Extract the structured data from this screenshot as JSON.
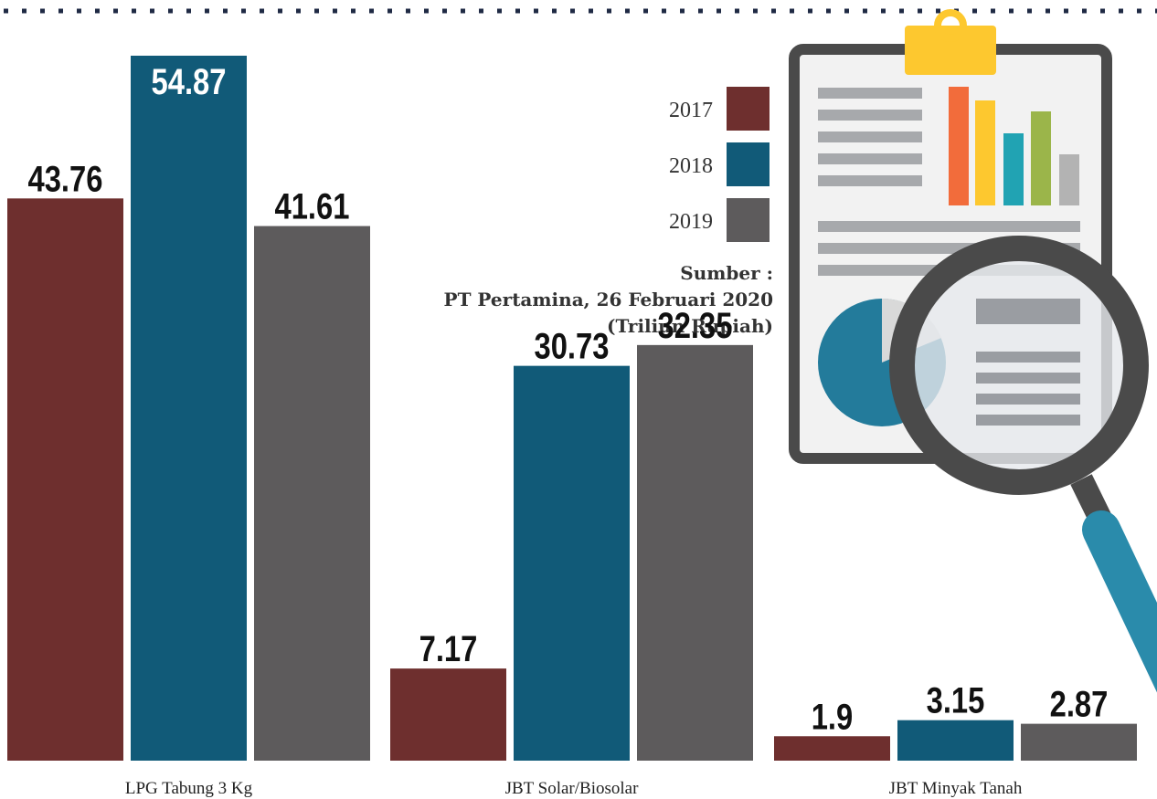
{
  "chart_data": {
    "type": "bar",
    "categories": [
      "LPG Tabung 3 Kg",
      "JBT Solar/Biosolar",
      "JBT Minyak Tanah"
    ],
    "series": [
      {
        "name": "2017",
        "color": "#6e2f2e",
        "values": [
          43.76,
          7.17,
          1.9
        ]
      },
      {
        "name": "2018",
        "color": "#115a78",
        "values": [
          54.87,
          30.73,
          3.15
        ]
      },
      {
        "name": "2019",
        "color": "#5d5b5c",
        "values": [
          41.61,
          32.35,
          2.87
        ]
      }
    ],
    "source": [
      "Sumber :",
      "PT Pertamina, 26 Februari 2020",
      "(Triliun Rupiah)"
    ]
  }
}
